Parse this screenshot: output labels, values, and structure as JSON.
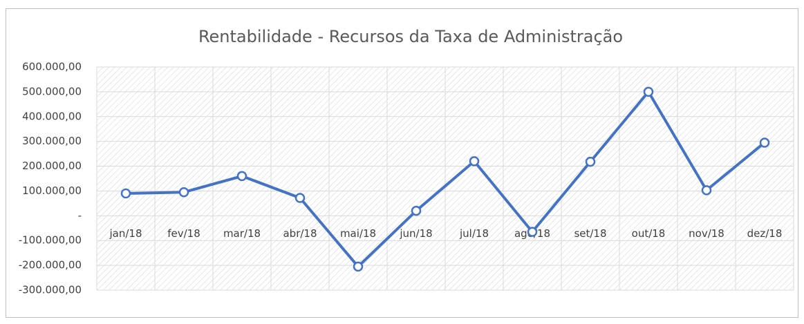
{
  "chart_data": {
    "type": "line",
    "title": "Rentabilidade - Recursos da Taxa de Administração",
    "categories": [
      "jan/18",
      "fev/18",
      "mar/18",
      "abr/18",
      "mai/18",
      "jun/18",
      "jul/18",
      "ago/18",
      "set/18",
      "out/18",
      "nov/18",
      "dez/18"
    ],
    "series": [
      {
        "name": "Rentabilidade",
        "color": "#4472c4",
        "values": [
          90000,
          95000,
          160000,
          72000,
          -205000,
          20000,
          220000,
          -65000,
          218000,
          500000,
          103000,
          295000
        ]
      }
    ],
    "ylim": [
      -300000,
      600000
    ],
    "yticks": [
      {
        "value": -300000,
        "label": "-300.000,00"
      },
      {
        "value": -200000,
        "label": "-200.000,00"
      },
      {
        "value": -100000,
        "label": "-100.000,00"
      },
      {
        "value": 0,
        "label": "-"
      },
      {
        "value": 100000,
        "label": "100.000,00"
      },
      {
        "value": 200000,
        "label": "200.000,00"
      },
      {
        "value": 300000,
        "label": "300.000,00"
      },
      {
        "value": 400000,
        "label": "400.000,00"
      },
      {
        "value": 500000,
        "label": "500.000,00"
      },
      {
        "value": 600000,
        "label": "600.000,00"
      }
    ],
    "grid": true
  }
}
